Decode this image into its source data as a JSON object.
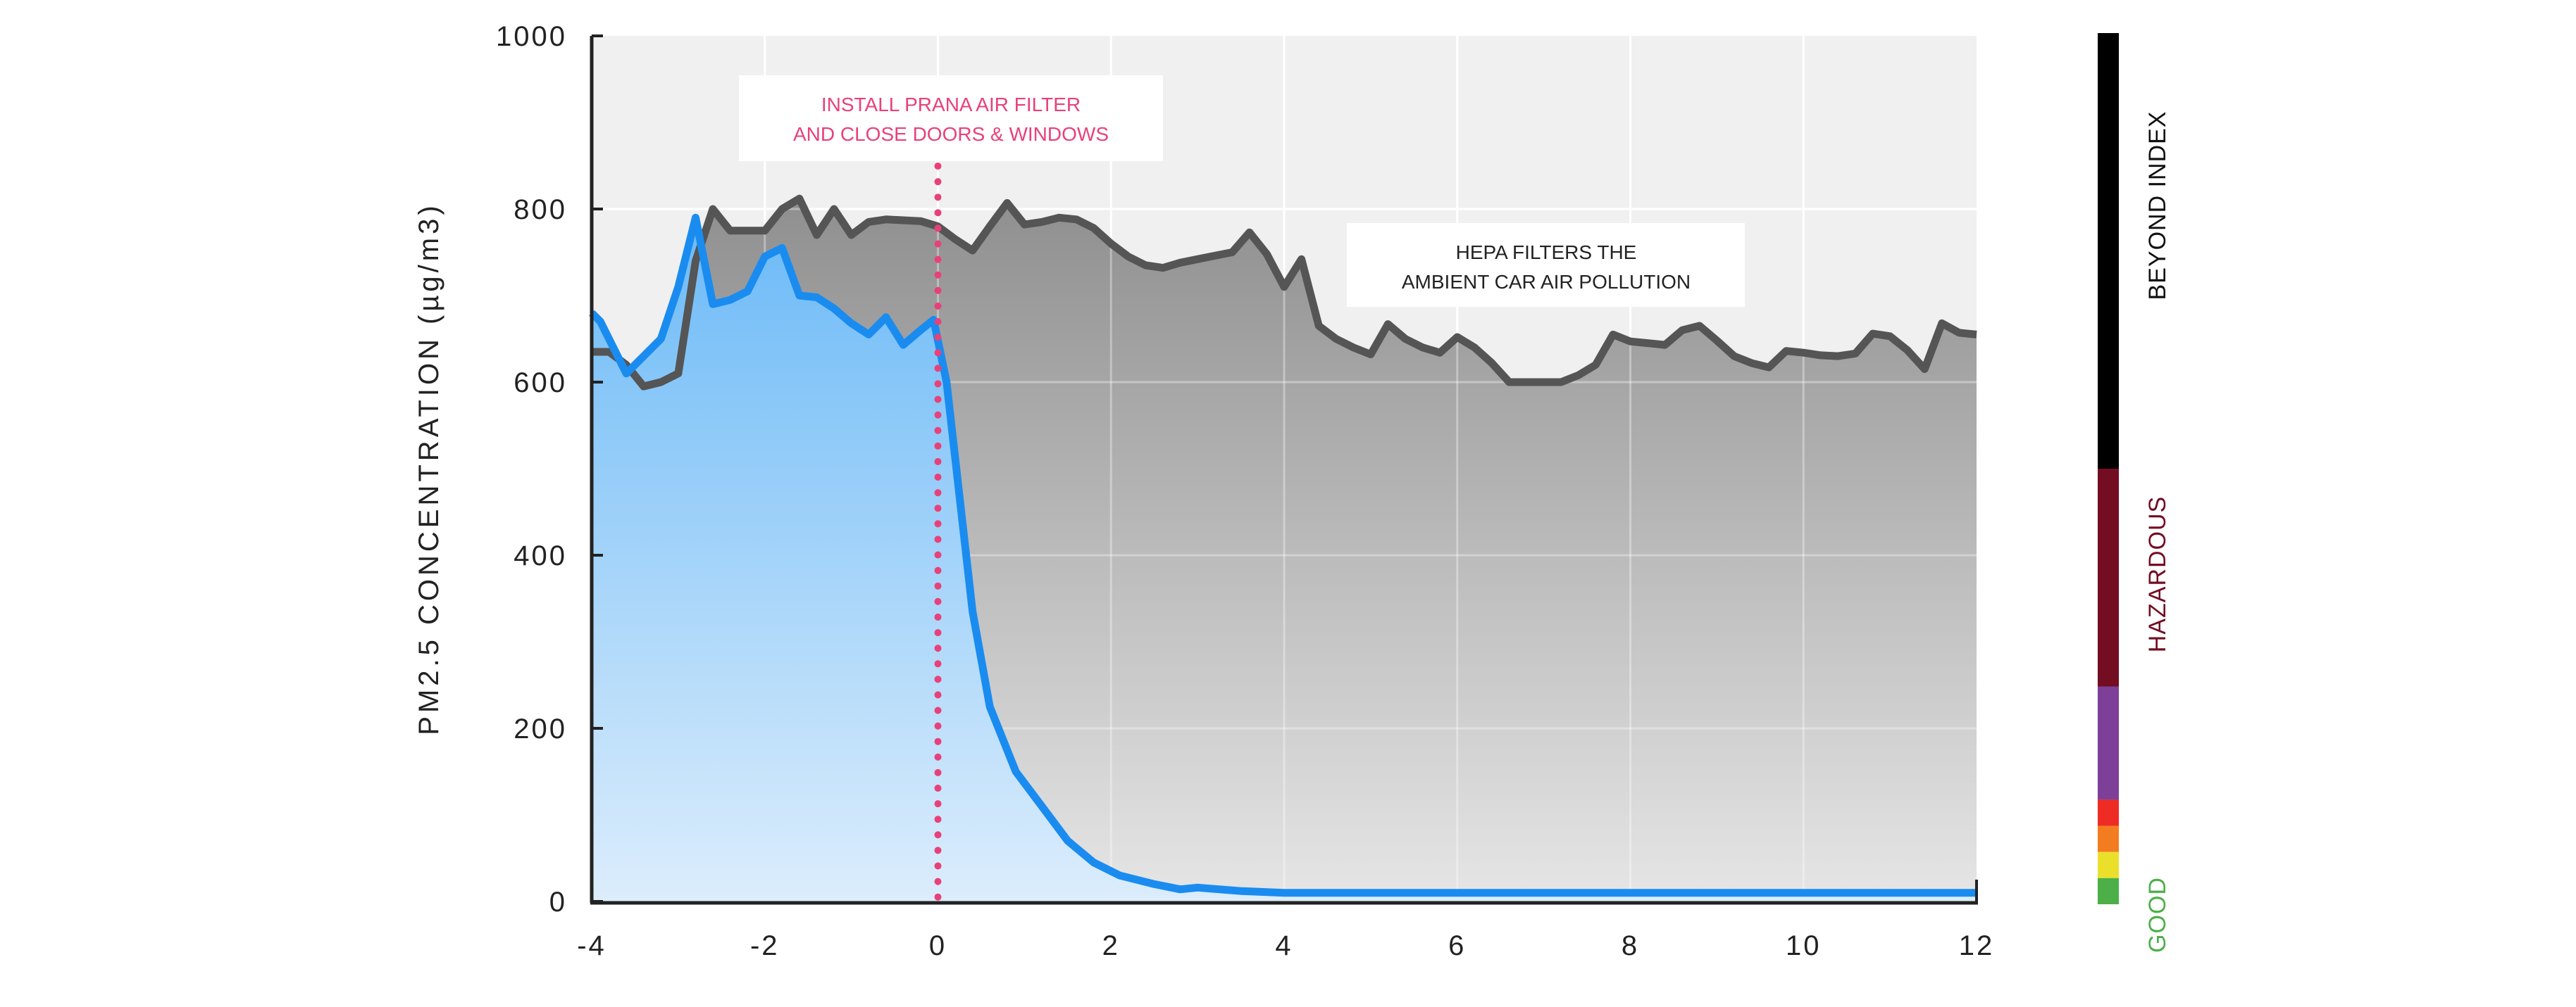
{
  "chart_data": {
    "type": "area",
    "title": "",
    "xlabel": "",
    "ylabel": "PM2.5 CONCENTRATION (µg/m3)",
    "xlim": [
      -4,
      12
    ],
    "ylim": [
      0,
      1000
    ],
    "xticks": [
      "-4",
      "-2",
      "0",
      "2",
      "4",
      "6",
      "8",
      "10",
      "12"
    ],
    "yticks": [
      "0",
      "200",
      "400",
      "600",
      "800",
      "1000"
    ],
    "grid": true,
    "series": [
      {
        "color": "#555555",
        "fill": "gray-gradient",
        "x": [
          -4,
          -3.8,
          -3.6,
          -3.4,
          -3.2,
          -3.0,
          -2.8,
          -2.6,
          -2.4,
          -2.2,
          -2.0,
          -1.8,
          -1.6,
          -1.4,
          -1.2,
          -1.0,
          -0.8,
          -0.6,
          -0.4,
          -0.2,
          0,
          0.2,
          0.4,
          0.6,
          0.8,
          1.0,
          1.2,
          1.4,
          1.6,
          1.8,
          2.0,
          2.2,
          2.4,
          2.6,
          2.8,
          3.0,
          3.2,
          3.4,
          3.6,
          3.8,
          4.0,
          4.2,
          4.4,
          4.6,
          4.8,
          5.0,
          5.2,
          5.4,
          5.6,
          5.8,
          6.0,
          6.2,
          6.4,
          6.6,
          6.8,
          7.0,
          7.2,
          7.4,
          7.6,
          7.8,
          8.0,
          8.2,
          8.4,
          8.6,
          8.8,
          9.0,
          9.2,
          9.4,
          9.6,
          9.8,
          10.0,
          10.2,
          10.4,
          10.6,
          10.8,
          11.0,
          11.2,
          11.4,
          11.6,
          11.8,
          12
        ],
        "y": [
          635,
          635,
          620,
          595,
          600,
          610,
          740,
          800,
          775,
          775,
          775,
          800,
          812,
          770,
          800,
          770,
          785,
          788,
          787,
          786,
          780,
          765,
          752,
          780,
          807,
          782,
          785,
          790,
          788,
          778,
          760,
          745,
          735,
          732,
          738,
          742,
          746,
          750,
          773,
          748,
          710,
          742,
          665,
          650,
          640,
          632,
          667,
          650,
          640,
          634,
          652,
          640,
          622,
          600,
          600,
          600,
          600,
          608,
          620,
          655,
          647,
          645,
          643,
          660,
          665,
          648,
          630,
          622,
          617,
          636,
          634,
          631,
          630,
          633,
          656,
          653,
          637,
          615,
          668,
          657,
          655
        ]
      },
      {
        "color": "#1a8cf0",
        "fill": "blue-gradient",
        "x": [
          -4,
          -3.9,
          -3.6,
          -3.4,
          -3.2,
          -3.0,
          -2.8,
          -2.6,
          -2.4,
          -2.2,
          -2.0,
          -1.8,
          -1.6,
          -1.4,
          -1.2,
          -1.0,
          -0.8,
          -0.6,
          -0.4,
          -0.2,
          -0.05,
          0.1,
          0.4,
          0.6,
          0.9,
          1.2,
          1.5,
          1.8,
          2.1,
          2.5,
          2.8,
          3.0,
          3.5,
          4.0,
          6.0,
          8.0,
          10.0,
          12
        ],
        "y": [
          680,
          670,
          610,
          630,
          650,
          710,
          790,
          690,
          695,
          705,
          745,
          755,
          700,
          698,
          685,
          668,
          655,
          675,
          643,
          660,
          672,
          600,
          335,
          225,
          150,
          110,
          70,
          45,
          30,
          20,
          14,
          16,
          12,
          10,
          10,
          10,
          10,
          10
        ]
      }
    ],
    "annotations": [
      {
        "lines": [
          "INSTALL PRANA AIR FILTER",
          "AND CLOSE DOORS & WINDOWS"
        ],
        "color": "#e8417a",
        "at_x": 0
      },
      {
        "lines": [
          "HEPA FILTERS THE",
          "AMBIENT CAR AIR POLLUTION"
        ],
        "color": "#222222"
      }
    ],
    "marker_line": {
      "x": 0,
      "color": "#e8417a",
      "style": "dotted"
    },
    "aqi_scale": {
      "segments": [
        {
          "from": 500,
          "to": 1000,
          "color": "#000000"
        },
        {
          "from": 250,
          "to": 500,
          "color": "#720d22"
        },
        {
          "from": 120,
          "to": 250,
          "color": "#7e3f98"
        },
        {
          "from": 90,
          "to": 120,
          "color": "#ee2b24"
        },
        {
          "from": 60,
          "to": 90,
          "color": "#f47c20"
        },
        {
          "from": 30,
          "to": 60,
          "color": "#eae02c"
        },
        {
          "from": 0,
          "to": 30,
          "color": "#4caf48"
        }
      ],
      "labels": [
        {
          "text": "BEYOND INDEX",
          "color": "#111111"
        },
        {
          "text": "HAZARDOUS",
          "color": "#720d22"
        },
        {
          "text": "GOOD",
          "color": "#4caf48"
        }
      ]
    }
  }
}
